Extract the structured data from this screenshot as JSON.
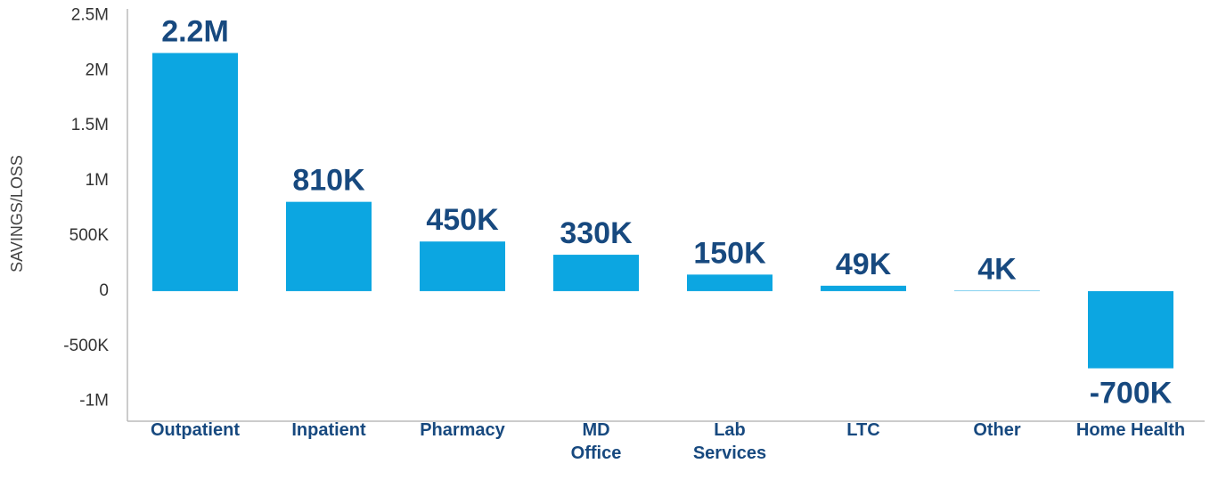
{
  "chart_data": {
    "type": "bar",
    "y_label": "SAVINGS/LOSS",
    "categories": [
      "Outpatient",
      "Inpatient",
      "Pharmacy",
      "MD\nOffice",
      "Lab\nServices",
      "LTC",
      "Other",
      "Home Health"
    ],
    "values": [
      2160000,
      810000,
      450000,
      330000,
      150000,
      49000,
      4000,
      -700000
    ],
    "value_labels": [
      "2.2M",
      "810K",
      "450K",
      "330K",
      "150K",
      "49K",
      "4K",
      "-700K"
    ],
    "color": "#0ca6e1",
    "label_color": "#17497f",
    "ylim": [
      -1180000,
      2560000
    ],
    "yticks": [
      {
        "value": -1000000,
        "label": "-1M"
      },
      {
        "value": -500000,
        "label": "-500K"
      },
      0,
      {
        "value": 500000,
        "label": "500K"
      },
      {
        "value": 1000000,
        "label": "1M"
      },
      {
        "value": 1500000,
        "label": "1.5M"
      },
      {
        "value": 2000000,
        "label": "2M"
      },
      {
        "value": 2500000,
        "label": "2.5M"
      }
    ],
    "grid": false
  }
}
